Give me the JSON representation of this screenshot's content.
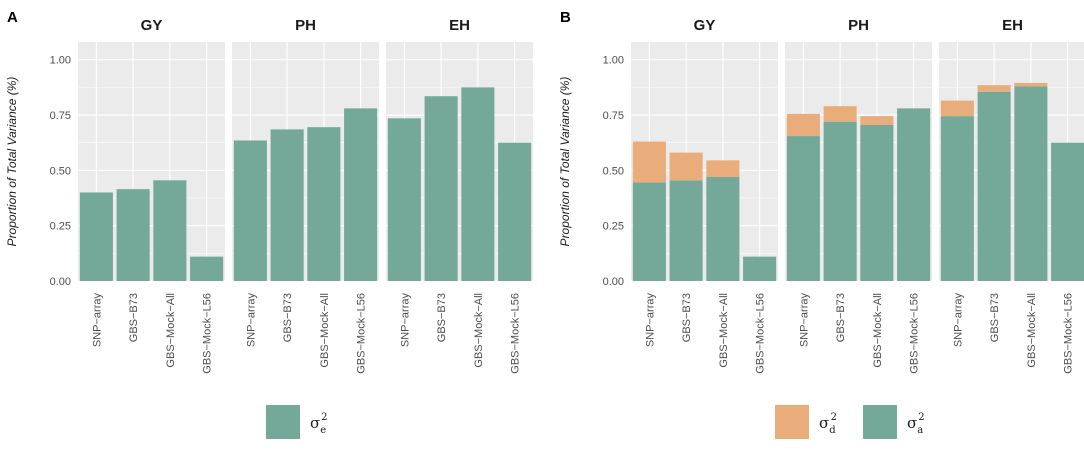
{
  "colors": {
    "additive": "#74a99a",
    "dominance": "#e8ad7a",
    "panel_bg": "#ebebeb",
    "grid": "#ffffff",
    "text": "#1a1a1a"
  },
  "chart_data": [
    {
      "panel_label": "A",
      "type": "bar",
      "ylabel": "Proportion of Total Variance (%)",
      "ylim": [
        0,
        1.08
      ],
      "yticks": [
        0,
        0.25,
        0.5,
        0.75,
        1
      ],
      "ytick_labels": [
        "0.00",
        "0.25",
        "0.50",
        "0.75",
        "1.00"
      ],
      "categories": [
        "SNP−array",
        "GBS−B73",
        "GBS−Mock−All",
        "GBS−Mock−L56"
      ],
      "facets": [
        {
          "title": "GY",
          "series": [
            {
              "name": "sigma_e2",
              "values": [
                0.4,
                0.415,
                0.455,
                0.11
              ]
            }
          ]
        },
        {
          "title": "PH",
          "series": [
            {
              "name": "sigma_e2",
              "values": [
                0.635,
                0.685,
                0.695,
                0.78
              ]
            }
          ]
        },
        {
          "title": "EH",
          "series": [
            {
              "name": "sigma_e2",
              "values": [
                0.735,
                0.835,
                0.875,
                0.625
              ]
            }
          ]
        }
      ],
      "legend": [
        {
          "key": "additive",
          "symbol": "σ",
          "sub": "e",
          "sup": "2"
        }
      ],
      "legend_position": "bottom"
    },
    {
      "panel_label": "B",
      "type": "bar",
      "stacked": true,
      "ylabel": "Proportion of Total Variance (%)",
      "ylim": [
        0,
        1.08
      ],
      "yticks": [
        0,
        0.25,
        0.5,
        0.75,
        1
      ],
      "ytick_labels": [
        "0.00",
        "0.25",
        "0.50",
        "0.75",
        "1.00"
      ],
      "categories": [
        "SNP−array",
        "GBS−B73",
        "GBS−Mock−All",
        "GBS−Mock−L56"
      ],
      "facets": [
        {
          "title": "GY",
          "series": [
            {
              "name": "sigma_a2",
              "values": [
                0.445,
                0.455,
                0.47,
                0.11
              ]
            },
            {
              "name": "sigma_d2",
              "values": [
                0.185,
                0.125,
                0.075,
                0.0
              ]
            }
          ]
        },
        {
          "title": "PH",
          "series": [
            {
              "name": "sigma_a2",
              "values": [
                0.655,
                0.72,
                0.705,
                0.78
              ]
            },
            {
              "name": "sigma_d2",
              "values": [
                0.1,
                0.07,
                0.04,
                0.0
              ]
            }
          ]
        },
        {
          "title": "EH",
          "series": [
            {
              "name": "sigma_a2",
              "values": [
                0.745,
                0.855,
                0.88,
                0.625
              ]
            },
            {
              "name": "sigma_d2",
              "values": [
                0.07,
                0.03,
                0.015,
                0.0
              ]
            }
          ]
        }
      ],
      "legend": [
        {
          "key": "dominance",
          "symbol": "σ",
          "sub": "d",
          "sup": "2"
        },
        {
          "key": "additive",
          "symbol": "σ",
          "sub": "a",
          "sup": "2"
        }
      ],
      "legend_position": "bottom"
    }
  ]
}
